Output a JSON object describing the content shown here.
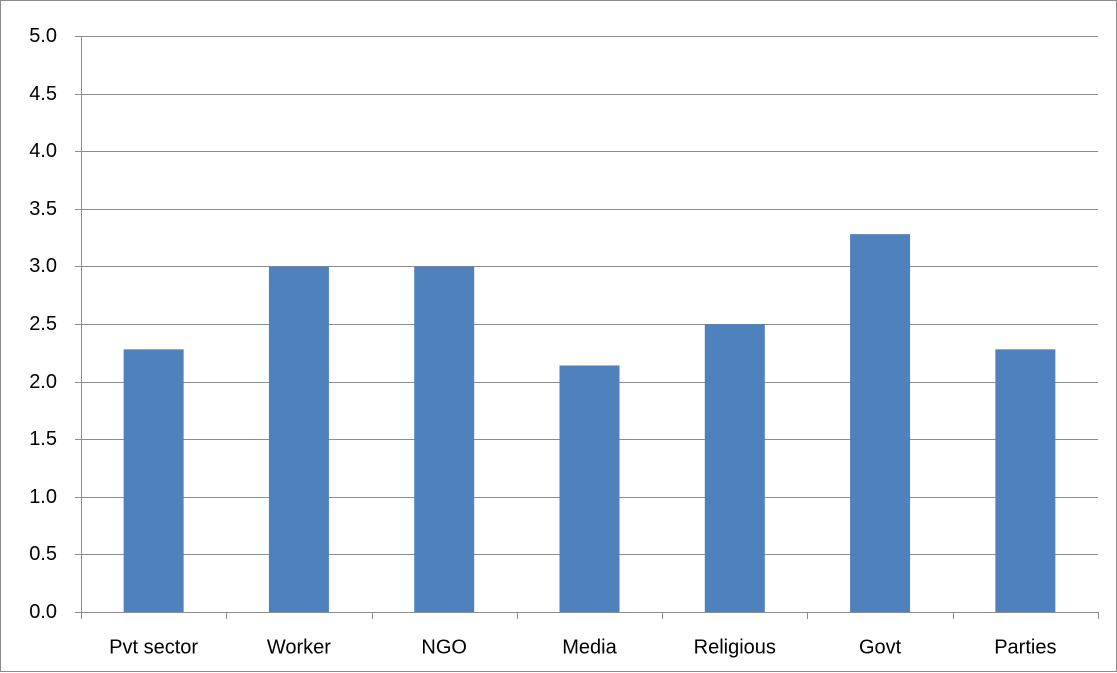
{
  "chart_data": {
    "type": "bar",
    "title": "",
    "xlabel": "",
    "ylabel": "",
    "categories": [
      "Pvt sector",
      "Worker",
      "NGO",
      "Media",
      "Religious",
      "Govt",
      "Parties"
    ],
    "values": [
      2.28,
      3.0,
      3.0,
      2.14,
      2.5,
      3.28,
      2.28
    ],
    "ylim": [
      0,
      5
    ],
    "y_ticks": [
      "0.0",
      "0.5",
      "1.0",
      "1.5",
      "2.0",
      "2.5",
      "3.0",
      "3.5",
      "4.0",
      "4.5",
      "5.0"
    ],
    "grid": "horizontal",
    "legend": "none",
    "colors": {
      "bar": "#4f81bd",
      "grid": "#8c8c8c",
      "axis": "#8c8c8c",
      "text": "#000000"
    }
  }
}
